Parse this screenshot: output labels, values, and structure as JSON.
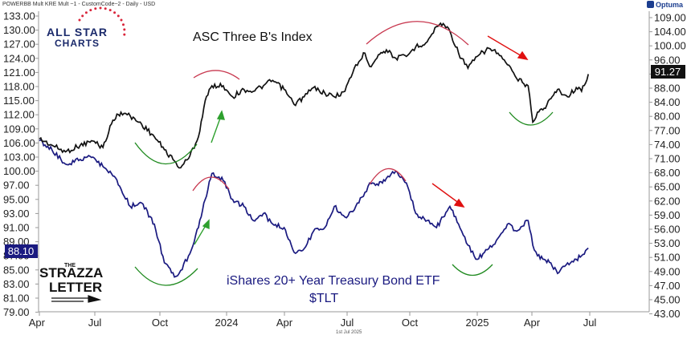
{
  "header": {
    "info": "POWERBB Mult KRE Mult ~1 - CustomCode~2 - Daily - USD",
    "brand": "Optuma"
  },
  "footer": {
    "date": "1st Jul 2025"
  },
  "logos": {
    "allstar_line1": "ALL STAR",
    "allstar_line2": "CHARTS",
    "strazza_the": "THE",
    "strazza_line1": "STRAZZA",
    "strazza_line2": "LETTER"
  },
  "annotations": {
    "top_title": "ASC Three B's Index",
    "bottom_title_1": "iShares 20+ Year Treasury Bond ETF",
    "bottom_title_2": "$TLT"
  },
  "colors": {
    "index_line": "#111111",
    "tlt_line": "#1a1a80",
    "red_arc": "#c8384f",
    "green_arc": "#1f8a1f",
    "red_arrow": "#e01010",
    "green_arrow": "#2ea02e"
  },
  "chart_data": {
    "type": "line",
    "x_ticks": [
      "Apr",
      "Jul",
      "Oct",
      "2024",
      "Apr",
      "Jul",
      "Oct",
      "2025",
      "Apr",
      "Jul"
    ],
    "x_range": [
      "2023-04-01",
      "2025-07-01"
    ],
    "left_axis": {
      "series": "$TLT",
      "ticks": [
        133.0,
        130.0,
        127.0,
        124.0,
        121.0,
        118.0,
        115.0,
        112.0,
        109.0,
        106.0,
        103.0,
        100.0,
        97.0,
        95.0,
        93.0,
        91.0,
        89.0,
        87.0,
        85.0,
        83.0,
        81.0,
        79.0
      ],
      "last_value_label": "88.10"
    },
    "right_axis": {
      "series": "ASC Three B's Index",
      "scale": "log",
      "ticks": [
        109.0,
        104.0,
        100.0,
        96.0,
        92.0,
        88.0,
        84.0,
        80.0,
        77.0,
        74.0,
        71.0,
        68.0,
        65.0,
        62.0,
        59.0,
        56.0,
        53.0,
        51.0,
        49.0,
        47.0,
        45.0,
        43.0
      ],
      "last_value_label": "91.27"
    },
    "series": [
      {
        "name": "ASC Three B's Index",
        "axis": "right",
        "points": [
          [
            "2023-04-01",
            74.5
          ],
          [
            "2023-04-20",
            73
          ],
          [
            "2023-05-10",
            71.5
          ],
          [
            "2023-06-01",
            73
          ],
          [
            "2023-06-20",
            74
          ],
          [
            "2023-07-05",
            72.5
          ],
          [
            "2023-07-20",
            79
          ],
          [
            "2023-08-01",
            81
          ],
          [
            "2023-08-15",
            80
          ],
          [
            "2023-09-01",
            78
          ],
          [
            "2023-09-20",
            75
          ],
          [
            "2023-10-05",
            72
          ],
          [
            "2023-10-20",
            69.5
          ],
          [
            "2023-10-27",
            68
          ],
          [
            "2023-11-10",
            70
          ],
          [
            "2023-11-25",
            75
          ],
          [
            "2023-12-05",
            84
          ],
          [
            "2023-12-15",
            88
          ],
          [
            "2024-01-01",
            88
          ],
          [
            "2024-01-15",
            85
          ],
          [
            "2024-02-01",
            87
          ],
          [
            "2024-02-15",
            86.5
          ],
          [
            "2024-03-01",
            88
          ],
          [
            "2024-03-15",
            89.5
          ],
          [
            "2024-04-01",
            87
          ],
          [
            "2024-04-16",
            83
          ],
          [
            "2024-05-01",
            85
          ],
          [
            "2024-05-15",
            87.5
          ],
          [
            "2024-06-01",
            86
          ],
          [
            "2024-06-15",
            85
          ],
          [
            "2024-07-01",
            86.5
          ],
          [
            "2024-07-15",
            93
          ],
          [
            "2024-07-31",
            97.5
          ],
          [
            "2024-08-07",
            93.5
          ],
          [
            "2024-08-20",
            97
          ],
          [
            "2024-09-01",
            98.5
          ],
          [
            "2024-09-15",
            96
          ],
          [
            "2024-10-01",
            96.5
          ],
          [
            "2024-10-15",
            99.5
          ],
          [
            "2024-11-01",
            101
          ],
          [
            "2024-11-15",
            106
          ],
          [
            "2024-11-25",
            107
          ],
          [
            "2024-12-05",
            104.5
          ],
          [
            "2024-12-18",
            97.5
          ],
          [
            "2025-01-01",
            93
          ],
          [
            "2025-01-15",
            96.5
          ],
          [
            "2025-02-01",
            99
          ],
          [
            "2025-02-15",
            97.5
          ],
          [
            "2025-03-01",
            94
          ],
          [
            "2025-03-15",
            90
          ],
          [
            "2025-04-01",
            88
          ],
          [
            "2025-04-08",
            78.5
          ],
          [
            "2025-04-15",
            81
          ],
          [
            "2025-04-25",
            82
          ],
          [
            "2025-05-05",
            84.5
          ],
          [
            "2025-05-15",
            87
          ],
          [
            "2025-05-30",
            85
          ],
          [
            "2025-06-12",
            87.5
          ],
          [
            "2025-06-20",
            86.5
          ],
          [
            "2025-06-30",
            91.27
          ]
        ]
      },
      {
        "name": "$TLT",
        "axis": "left",
        "points": [
          [
            "2023-04-01",
            106.5
          ],
          [
            "2023-04-20",
            104.5
          ],
          [
            "2023-05-10",
            101.5
          ],
          [
            "2023-06-01",
            102.5
          ],
          [
            "2023-06-20",
            103
          ],
          [
            "2023-07-05",
            101
          ],
          [
            "2023-07-20",
            99
          ],
          [
            "2023-08-01",
            96.5
          ],
          [
            "2023-08-15",
            94
          ],
          [
            "2023-09-01",
            94.5
          ],
          [
            "2023-09-20",
            91.5
          ],
          [
            "2023-10-05",
            86
          ],
          [
            "2023-10-20",
            84
          ],
          [
            "2023-10-27",
            84.5
          ],
          [
            "2023-11-10",
            87
          ],
          [
            "2023-11-25",
            91
          ],
          [
            "2023-12-05",
            95
          ],
          [
            "2023-12-15",
            99.5
          ],
          [
            "2024-01-01",
            98
          ],
          [
            "2024-01-15",
            95
          ],
          [
            "2024-02-01",
            94
          ],
          [
            "2024-02-15",
            92
          ],
          [
            "2024-03-01",
            93
          ],
          [
            "2024-03-15",
            91.5
          ],
          [
            "2024-04-01",
            91
          ],
          [
            "2024-04-16",
            87.5
          ],
          [
            "2024-05-01",
            88
          ],
          [
            "2024-05-15",
            90.5
          ],
          [
            "2024-06-01",
            91
          ],
          [
            "2024-06-15",
            94
          ],
          [
            "2024-07-01",
            92.5
          ],
          [
            "2024-07-15",
            93.5
          ],
          [
            "2024-07-31",
            96
          ],
          [
            "2024-08-07",
            97.5
          ],
          [
            "2024-08-20",
            97
          ],
          [
            "2024-09-01",
            98.5
          ],
          [
            "2024-09-15",
            100
          ],
          [
            "2024-10-01",
            97.5
          ],
          [
            "2024-10-15",
            93
          ],
          [
            "2024-11-01",
            92
          ],
          [
            "2024-11-15",
            91
          ],
          [
            "2024-11-25",
            92.5
          ],
          [
            "2024-12-05",
            94
          ],
          [
            "2024-12-18",
            91.5
          ],
          [
            "2025-01-01",
            88.5
          ],
          [
            "2025-01-15",
            86.5
          ],
          [
            "2025-02-01",
            88
          ],
          [
            "2025-02-15",
            89.5
          ],
          [
            "2025-03-01",
            91.5
          ],
          [
            "2025-03-15",
            90.5
          ],
          [
            "2025-04-01",
            92
          ],
          [
            "2025-04-08",
            88.5
          ],
          [
            "2025-04-15",
            87
          ],
          [
            "2025-04-25",
            86.5
          ],
          [
            "2025-05-05",
            86
          ],
          [
            "2025-05-15",
            84.5
          ],
          [
            "2025-05-30",
            86
          ],
          [
            "2025-06-12",
            86.5
          ],
          [
            "2025-06-20",
            87
          ],
          [
            "2025-06-30",
            88.1
          ]
        ]
      }
    ]
  }
}
